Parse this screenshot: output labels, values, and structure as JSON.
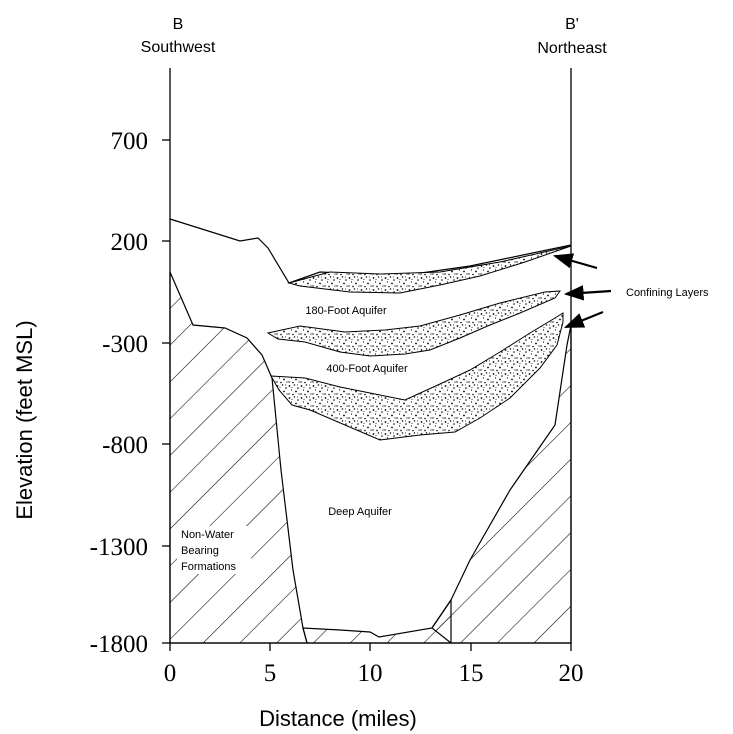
{
  "diagram": {
    "type": "geologic-cross-section",
    "left_end": {
      "label": "B",
      "direction": "Southwest"
    },
    "right_end": {
      "label": "B'",
      "direction": "Northeast"
    },
    "y_axis": {
      "label": "Elevation (feet MSL)",
      "ticks": [
        "700",
        "200",
        "-300",
        "-800",
        "-1300",
        "-1800"
      ]
    },
    "x_axis": {
      "label": "Distance (miles)",
      "ticks": [
        "0",
        "5",
        "10",
        "15",
        "20"
      ]
    },
    "units": {
      "labels": [
        "180-Foot Aquifer",
        "400-Foot Aquifer",
        "Deep Aquifer"
      ]
    },
    "non_water": {
      "lines": [
        "Non-Water",
        "Bearing",
        "Formations"
      ]
    },
    "callout": {
      "label": "Confining Layers"
    },
    "fills": {
      "confining_stipple": "stippled",
      "bedrock_hatch": "diagonal-hatch"
    },
    "colors": {
      "ink": "#000000",
      "background": "#ffffff"
    }
  }
}
